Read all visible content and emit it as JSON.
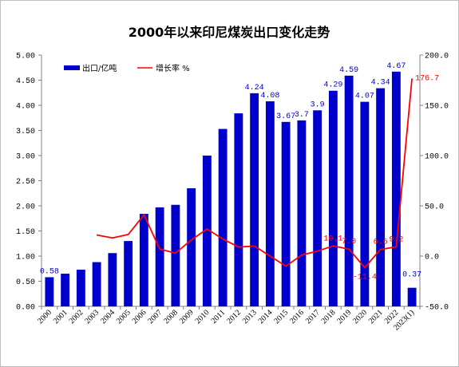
{
  "chart_data": {
    "type": "bar",
    "title": "2000年以来印尼煤炭出口变化走势",
    "categories": [
      "2000",
      "2001",
      "2002",
      "2003",
      "2004",
      "2005",
      "2006",
      "2007",
      "2008",
      "2009",
      "2010",
      "2011",
      "2012",
      "2013",
      "2014",
      "2015",
      "2016",
      "2017",
      "2018",
      "2019",
      "2020",
      "2021",
      "2022",
      "2023(1)"
    ],
    "series": [
      {
        "name": "出口/亿吨",
        "type": "bar",
        "axis": "left",
        "color": "#0000CC",
        "values": [
          0.58,
          0.65,
          0.73,
          0.88,
          1.06,
          1.3,
          1.84,
          1.97,
          2.02,
          2.35,
          3.0,
          3.53,
          3.84,
          4.24,
          4.08,
          3.67,
          3.7,
          3.9,
          4.29,
          4.59,
          4.07,
          4.34,
          4.67,
          0.37
        ],
        "labels": [
          {
            "index": 0,
            "text": "0.58"
          },
          {
            "index": 13,
            "text": "4.24"
          },
          {
            "index": 14,
            "text": "4.08"
          },
          {
            "index": 15,
            "text": "3.67"
          },
          {
            "index": 16,
            "text": "3.7"
          },
          {
            "index": 17,
            "text": "3.9"
          },
          {
            "index": 18,
            "text": "4.29"
          },
          {
            "index": 19,
            "text": "4.59"
          },
          {
            "index": 20,
            "text": "4.07"
          },
          {
            "index": 21,
            "text": "4.34"
          },
          {
            "index": 22,
            "text": "4.67"
          },
          {
            "index": 23,
            "text": "0.37"
          }
        ]
      },
      {
        "name": "增长率 %",
        "type": "line",
        "axis": "right",
        "color": "#FF0000",
        "values": [
          null,
          null,
          null,
          21.0,
          18.0,
          21.5,
          41.0,
          7.0,
          3.0,
          16.0,
          27.0,
          17.0,
          9.0,
          10.0,
          0.0,
          -10.0,
          1.0,
          5.0,
          10.1,
          7.0,
          -11.4,
          6.6,
          9.2,
          176.7
        ],
        "labels": [
          {
            "index": 18,
            "text": "10.1"
          },
          {
            "index": 19,
            "text": "7.0"
          },
          {
            "index": 20,
            "text": "-11.4"
          },
          {
            "index": 21,
            "text": "6.6"
          },
          {
            "index": 22,
            "text": "9.2"
          },
          {
            "index": 23,
            "text": "176.7"
          }
        ]
      }
    ],
    "y_left": {
      "min": 0,
      "max": 5,
      "ticks": [
        "0.00",
        "0.50",
        "1.00",
        "1.50",
        "2.00",
        "2.50",
        "3.00",
        "3.50",
        "4.00",
        "4.50",
        "5.00"
      ]
    },
    "y_right": {
      "min": -50,
      "max": 200,
      "ticks": [
        "-50.0",
        "0.0",
        "50.0",
        "100.0",
        "150.0",
        "200.0"
      ]
    },
    "grid": false,
    "legend_position": "top-left"
  }
}
